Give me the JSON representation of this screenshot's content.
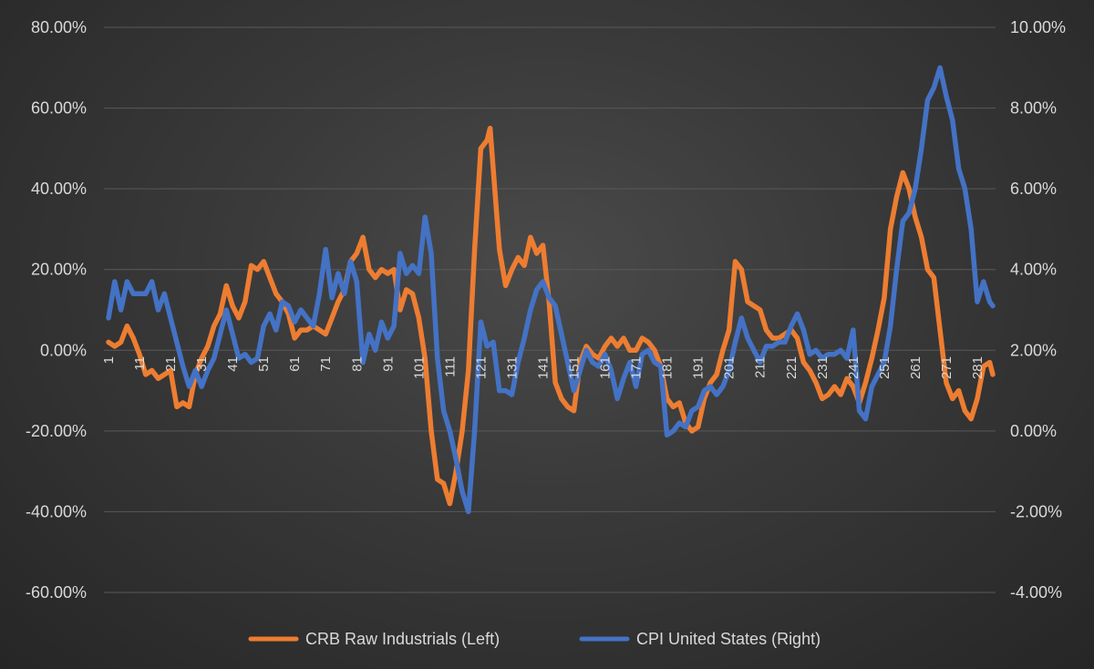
{
  "chart_data": {
    "type": "line",
    "title": "",
    "x_start": 1,
    "x_end": 286,
    "x_tick_step": 10,
    "x_tick_labels": [
      "1",
      "11",
      "21",
      "31",
      "41",
      "51",
      "61",
      "71",
      "81",
      "91",
      "101",
      "111",
      "121",
      "131",
      "141",
      "151",
      "161",
      "171",
      "181",
      "191",
      "201",
      "211",
      "221",
      "231",
      "241",
      "251",
      "261",
      "271",
      "281"
    ],
    "y_left": {
      "min": -0.6,
      "max": 0.8,
      "step": 0.2,
      "tick_labels": [
        "80.00%",
        "60.00%",
        "40.00%",
        "20.00%",
        "0.00%",
        "-20.00%",
        "-40.00%",
        "-60.00%"
      ]
    },
    "y_right": {
      "min": -0.04,
      "max": 0.1,
      "step": 0.02,
      "tick_labels": [
        "10.00%",
        "8.00%",
        "6.00%",
        "4.00%",
        "2.00%",
        "0.00%",
        "-2.00%",
        "-4.00%"
      ]
    },
    "grid": true,
    "legend_position": "bottom",
    "series": [
      {
        "name": "CRB Raw Industrials (Left)",
        "axis": "left",
        "color": "#ed7d31",
        "points": [
          [
            1,
            0.02
          ],
          [
            3,
            0.01
          ],
          [
            5,
            0.02
          ],
          [
            7,
            0.06
          ],
          [
            9,
            0.03
          ],
          [
            11,
            -0.01
          ],
          [
            13,
            -0.06
          ],
          [
            15,
            -0.05
          ],
          [
            17,
            -0.07
          ],
          [
            19,
            -0.06
          ],
          [
            21,
            -0.05
          ],
          [
            23,
            -0.14
          ],
          [
            25,
            -0.13
          ],
          [
            27,
            -0.14
          ],
          [
            29,
            -0.06
          ],
          [
            31,
            -0.02
          ],
          [
            33,
            0.01
          ],
          [
            35,
            0.06
          ],
          [
            37,
            0.09
          ],
          [
            39,
            0.16
          ],
          [
            41,
            0.11
          ],
          [
            43,
            0.08
          ],
          [
            45,
            0.12
          ],
          [
            47,
            0.21
          ],
          [
            49,
            0.2
          ],
          [
            51,
            0.22
          ],
          [
            53,
            0.18
          ],
          [
            55,
            0.14
          ],
          [
            57,
            0.12
          ],
          [
            59,
            0.09
          ],
          [
            61,
            0.03
          ],
          [
            63,
            0.05
          ],
          [
            65,
            0.05
          ],
          [
            67,
            0.06
          ],
          [
            69,
            0.05
          ],
          [
            71,
            0.04
          ],
          [
            73,
            0.08
          ],
          [
            75,
            0.12
          ],
          [
            77,
            0.15
          ],
          [
            79,
            0.22
          ],
          [
            81,
            0.24
          ],
          [
            83,
            0.28
          ],
          [
            85,
            0.2
          ],
          [
            87,
            0.18
          ],
          [
            89,
            0.2
          ],
          [
            91,
            0.19
          ],
          [
            93,
            0.2
          ],
          [
            95,
            0.1
          ],
          [
            97,
            0.15
          ],
          [
            99,
            0.14
          ],
          [
            101,
            0.08
          ],
          [
            103,
            -0.02
          ],
          [
            105,
            -0.2
          ],
          [
            107,
            -0.32
          ],
          [
            109,
            -0.33
          ],
          [
            111,
            -0.38
          ],
          [
            113,
            -0.3
          ],
          [
            115,
            -0.2
          ],
          [
            117,
            -0.05
          ],
          [
            119,
            0.25
          ],
          [
            121,
            0.5
          ],
          [
            123,
            0.52
          ],
          [
            124,
            0.55
          ],
          [
            125,
            0.45
          ],
          [
            127,
            0.25
          ],
          [
            129,
            0.16
          ],
          [
            131,
            0.2
          ],
          [
            133,
            0.23
          ],
          [
            135,
            0.21
          ],
          [
            137,
            0.28
          ],
          [
            139,
            0.24
          ],
          [
            141,
            0.26
          ],
          [
            143,
            0.12
          ],
          [
            145,
            -0.08
          ],
          [
            147,
            -0.12
          ],
          [
            149,
            -0.14
          ],
          [
            151,
            -0.15
          ],
          [
            153,
            -0.03
          ],
          [
            155,
            0.01
          ],
          [
            157,
            -0.01
          ],
          [
            159,
            -0.02
          ],
          [
            161,
            0.01
          ],
          [
            163,
            0.03
          ],
          [
            165,
            0.01
          ],
          [
            167,
            0.03
          ],
          [
            169,
            0.0
          ],
          [
            171,
            0.0
          ],
          [
            173,
            0.03
          ],
          [
            175,
            0.02
          ],
          [
            177,
            0.0
          ],
          [
            179,
            -0.04
          ],
          [
            181,
            -0.12
          ],
          [
            183,
            -0.14
          ],
          [
            185,
            -0.13
          ],
          [
            187,
            -0.18
          ],
          [
            189,
            -0.2
          ],
          [
            191,
            -0.19
          ],
          [
            193,
            -0.12
          ],
          [
            195,
            -0.08
          ],
          [
            197,
            -0.06
          ],
          [
            199,
            0.0
          ],
          [
            201,
            0.05
          ],
          [
            203,
            0.22
          ],
          [
            205,
            0.2
          ],
          [
            207,
            0.12
          ],
          [
            209,
            0.11
          ],
          [
            211,
            0.1
          ],
          [
            213,
            0.05
          ],
          [
            215,
            0.03
          ],
          [
            217,
            0.03
          ],
          [
            219,
            0.04
          ],
          [
            221,
            0.05
          ],
          [
            223,
            0.03
          ],
          [
            225,
            -0.03
          ],
          [
            227,
            -0.05
          ],
          [
            229,
            -0.08
          ],
          [
            231,
            -0.12
          ],
          [
            233,
            -0.11
          ],
          [
            235,
            -0.09
          ],
          [
            237,
            -0.11
          ],
          [
            239,
            -0.07
          ],
          [
            241,
            -0.09
          ],
          [
            243,
            -0.13
          ],
          [
            245,
            -0.08
          ],
          [
            247,
            -0.02
          ],
          [
            249,
            0.05
          ],
          [
            251,
            0.13
          ],
          [
            253,
            0.3
          ],
          [
            255,
            0.38
          ],
          [
            257,
            0.44
          ],
          [
            259,
            0.4
          ],
          [
            261,
            0.33
          ],
          [
            263,
            0.28
          ],
          [
            265,
            0.2
          ],
          [
            267,
            0.18
          ],
          [
            269,
            0.05
          ],
          [
            271,
            -0.08
          ],
          [
            273,
            -0.12
          ],
          [
            275,
            -0.1
          ],
          [
            277,
            -0.15
          ],
          [
            279,
            -0.17
          ],
          [
            281,
            -0.12
          ],
          [
            283,
            -0.04
          ],
          [
            285,
            -0.03
          ],
          [
            286,
            -0.06
          ]
        ]
      },
      {
        "name": "CPI United States (Right)",
        "axis": "right",
        "color": "#4472c4",
        "points": [
          [
            1,
            0.028
          ],
          [
            3,
            0.037
          ],
          [
            5,
            0.03
          ],
          [
            7,
            0.037
          ],
          [
            9,
            0.034
          ],
          [
            11,
            0.034
          ],
          [
            13,
            0.034
          ],
          [
            15,
            0.037
          ],
          [
            17,
            0.03
          ],
          [
            19,
            0.034
          ],
          [
            21,
            0.028
          ],
          [
            23,
            0.022
          ],
          [
            25,
            0.016
          ],
          [
            27,
            0.011
          ],
          [
            29,
            0.015
          ],
          [
            31,
            0.011
          ],
          [
            33,
            0.015
          ],
          [
            35,
            0.018
          ],
          [
            37,
            0.024
          ],
          [
            39,
            0.03
          ],
          [
            41,
            0.024
          ],
          [
            43,
            0.018
          ],
          [
            45,
            0.019
          ],
          [
            47,
            0.017
          ],
          [
            49,
            0.018
          ],
          [
            51,
            0.026
          ],
          [
            53,
            0.029
          ],
          [
            55,
            0.025
          ],
          [
            57,
            0.032
          ],
          [
            59,
            0.031
          ],
          [
            61,
            0.027
          ],
          [
            63,
            0.03
          ],
          [
            65,
            0.028
          ],
          [
            67,
            0.026
          ],
          [
            69,
            0.034
          ],
          [
            71,
            0.045
          ],
          [
            73,
            0.033
          ],
          [
            75,
            0.039
          ],
          [
            77,
            0.034
          ],
          [
            79,
            0.042
          ],
          [
            81,
            0.037
          ],
          [
            83,
            0.017
          ],
          [
            85,
            0.024
          ],
          [
            87,
            0.02
          ],
          [
            89,
            0.027
          ],
          [
            91,
            0.023
          ],
          [
            93,
            0.026
          ],
          [
            95,
            0.044
          ],
          [
            97,
            0.039
          ],
          [
            99,
            0.041
          ],
          [
            101,
            0.039
          ],
          [
            103,
            0.053
          ],
          [
            105,
            0.044
          ],
          [
            107,
            0.018
          ],
          [
            109,
            0.005
          ],
          [
            111,
            0.0
          ],
          [
            113,
            -0.007
          ],
          [
            115,
            -0.015
          ],
          [
            117,
            -0.02
          ],
          [
            119,
            0.0
          ],
          [
            121,
            0.027
          ],
          [
            123,
            0.021
          ],
          [
            125,
            0.022
          ],
          [
            127,
            0.01
          ],
          [
            129,
            0.01
          ],
          [
            131,
            0.009
          ],
          [
            133,
            0.017
          ],
          [
            135,
            0.023
          ],
          [
            137,
            0.03
          ],
          [
            139,
            0.035
          ],
          [
            141,
            0.037
          ],
          [
            143,
            0.033
          ],
          [
            145,
            0.031
          ],
          [
            147,
            0.024
          ],
          [
            149,
            0.017
          ],
          [
            151,
            0.01
          ],
          [
            153,
            0.015
          ],
          [
            155,
            0.02
          ],
          [
            157,
            0.017
          ],
          [
            159,
            0.016
          ],
          [
            161,
            0.019
          ],
          [
            163,
            0.015
          ],
          [
            165,
            0.008
          ],
          [
            167,
            0.013
          ],
          [
            169,
            0.017
          ],
          [
            171,
            0.011
          ],
          [
            173,
            0.019
          ],
          [
            175,
            0.02
          ],
          [
            177,
            0.017
          ],
          [
            179,
            0.016
          ],
          [
            181,
            -0.001
          ],
          [
            183,
            0.0
          ],
          [
            185,
            0.002
          ],
          [
            187,
            0.001
          ],
          [
            189,
            0.005
          ],
          [
            191,
            0.006
          ],
          [
            193,
            0.01
          ],
          [
            195,
            0.011
          ],
          [
            197,
            0.009
          ],
          [
            199,
            0.011
          ],
          [
            201,
            0.015
          ],
          [
            203,
            0.022
          ],
          [
            205,
            0.028
          ],
          [
            207,
            0.023
          ],
          [
            209,
            0.02
          ],
          [
            211,
            0.017
          ],
          [
            213,
            0.021
          ],
          [
            215,
            0.021
          ],
          [
            217,
            0.022
          ],
          [
            219,
            0.022
          ],
          [
            221,
            0.026
          ],
          [
            223,
            0.029
          ],
          [
            225,
            0.025
          ],
          [
            227,
            0.019
          ],
          [
            229,
            0.02
          ],
          [
            231,
            0.018
          ],
          [
            233,
            0.019
          ],
          [
            235,
            0.019
          ],
          [
            237,
            0.02
          ],
          [
            239,
            0.018
          ],
          [
            241,
            0.025
          ],
          [
            243,
            0.005
          ],
          [
            245,
            0.003
          ],
          [
            247,
            0.011
          ],
          [
            249,
            0.014
          ],
          [
            251,
            0.017
          ],
          [
            253,
            0.026
          ],
          [
            255,
            0.04
          ],
          [
            257,
            0.052
          ],
          [
            259,
            0.054
          ],
          [
            261,
            0.06
          ],
          [
            263,
            0.07
          ],
          [
            265,
            0.082
          ],
          [
            267,
            0.085
          ],
          [
            269,
            0.09
          ],
          [
            271,
            0.083
          ],
          [
            273,
            0.077
          ],
          [
            275,
            0.065
          ],
          [
            277,
            0.06
          ],
          [
            279,
            0.05
          ],
          [
            281,
            0.032
          ],
          [
            283,
            0.037
          ],
          [
            285,
            0.032
          ],
          [
            286,
            0.031
          ]
        ]
      }
    ]
  },
  "legend": {
    "items": [
      {
        "label": "CRB Raw Industrials (Left)",
        "color": "#ed7d31"
      },
      {
        "label": "CPI United States (Right)",
        "color": "#4472c4"
      }
    ]
  }
}
